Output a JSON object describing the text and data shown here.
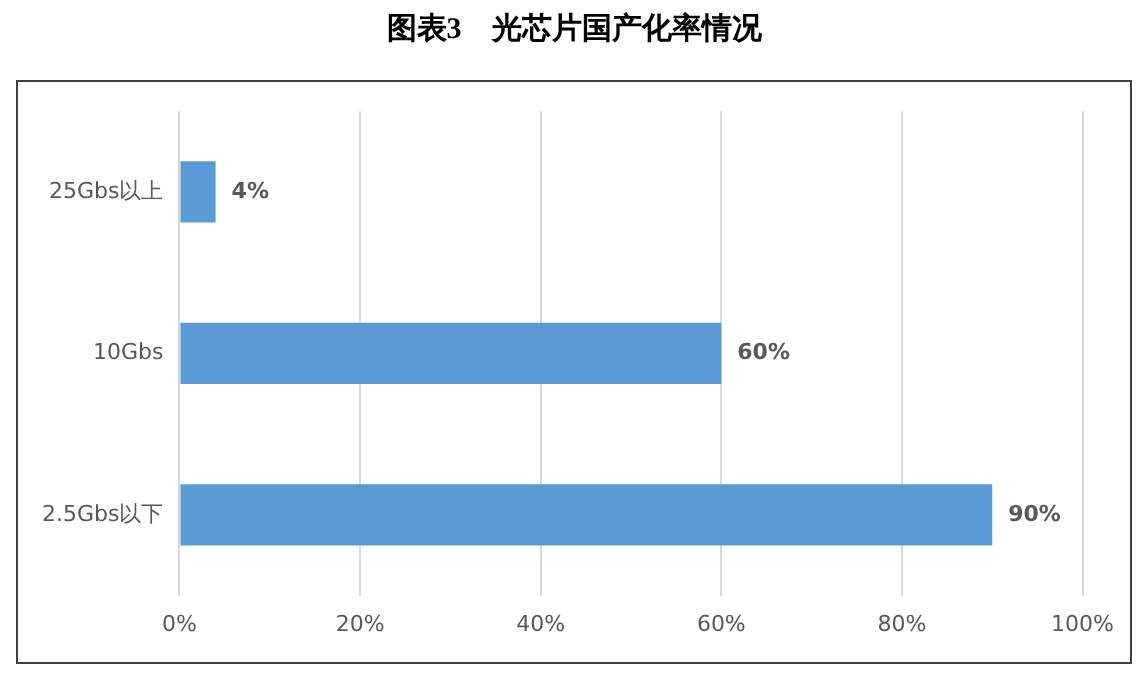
{
  "chart_data": {
    "type": "bar",
    "orientation": "horizontal",
    "title": "图表3　光芯片国产化率情况",
    "categories": [
      "25Gbs以上",
      "10Gbs",
      "2.5Gbs以下"
    ],
    "values": [
      4,
      60,
      90
    ],
    "color": "#5b9bd5",
    "value_labels": [
      "4%",
      "60%",
      "90%"
    ],
    "xlim": [
      0,
      100
    ],
    "xticks": [
      {
        "value": 0,
        "label": "0%"
      },
      {
        "value": 20,
        "label": "20%"
      },
      {
        "value": 40,
        "label": "40%"
      },
      {
        "value": 60,
        "label": "60%"
      },
      {
        "value": 80,
        "label": "80%"
      },
      {
        "value": 100,
        "label": "100%"
      }
    ],
    "grid": "x",
    "legend": false
  }
}
